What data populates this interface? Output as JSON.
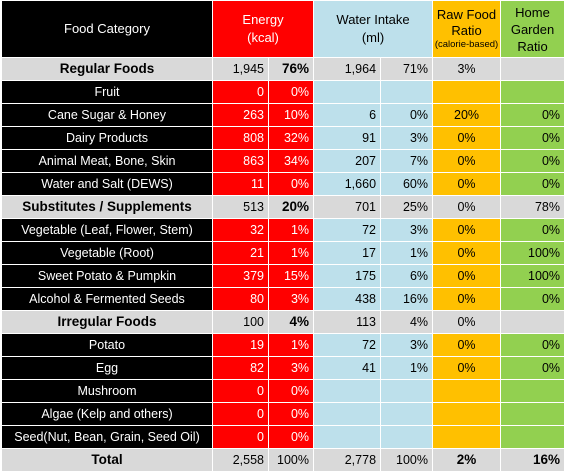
{
  "headers": {
    "category": "Food Category",
    "energy": "Energy",
    "energy_unit": "(kcal)",
    "water": "Water Intake",
    "water_unit": "(ml)",
    "raw_line1": "Raw Food",
    "raw_line2": "Ratio",
    "raw_note": "(calorie-based)",
    "home_line1": "Home",
    "home_line2": "Garden",
    "home_line3": "Ratio"
  },
  "rows": [
    {
      "kind": "group",
      "category": "Regular Foods",
      "energy": "1,945",
      "energy_pct": "76%",
      "water": "1,964",
      "water_pct": "71%",
      "raw": "3%",
      "home": ""
    },
    {
      "kind": "item",
      "category": "Fruit",
      "energy": "0",
      "energy_pct": "0%",
      "water": "",
      "water_pct": "",
      "raw": "",
      "home": ""
    },
    {
      "kind": "item",
      "category": "Cane Sugar & Honey",
      "energy": "263",
      "energy_pct": "10%",
      "water": "6",
      "water_pct": "0%",
      "raw": "20%",
      "home": "0%"
    },
    {
      "kind": "item",
      "category": "Dairy Products",
      "energy": "808",
      "energy_pct": "32%",
      "water": "91",
      "water_pct": "3%",
      "raw": "0%",
      "home": "0%"
    },
    {
      "kind": "item",
      "category": "Animal Meat, Bone, Skin",
      "energy": "863",
      "energy_pct": "34%",
      "water": "207",
      "water_pct": "7%",
      "raw": "0%",
      "home": "0%"
    },
    {
      "kind": "item",
      "category": "Water and Salt (DEWS)",
      "energy": "11",
      "energy_pct": "0%",
      "water": "1,660",
      "water_pct": "60%",
      "raw": "0%",
      "home": "0%"
    },
    {
      "kind": "group",
      "category": "Substitutes / Supplements",
      "energy": "513",
      "energy_pct": "20%",
      "water": "701",
      "water_pct": "25%",
      "raw": "0%",
      "home": "78%"
    },
    {
      "kind": "item",
      "category": "Vegetable (Leaf, Flower, Stem)",
      "energy": "32",
      "energy_pct": "1%",
      "water": "72",
      "water_pct": "3%",
      "raw": "0%",
      "home": "0%"
    },
    {
      "kind": "item",
      "category": "Vegetable (Root)",
      "energy": "21",
      "energy_pct": "1%",
      "water": "17",
      "water_pct": "1%",
      "raw": "0%",
      "home": "100%"
    },
    {
      "kind": "item",
      "category": "Sweet Potato & Pumpkin",
      "energy": "379",
      "energy_pct": "15%",
      "water": "175",
      "water_pct": "6%",
      "raw": "0%",
      "home": "100%"
    },
    {
      "kind": "item",
      "category": "Alcohol & Fermented Seeds",
      "energy": "80",
      "energy_pct": "3%",
      "water": "438",
      "water_pct": "16%",
      "raw": "0%",
      "home": "0%"
    },
    {
      "kind": "group",
      "category": "Irregular Foods",
      "energy": "100",
      "energy_pct": "4%",
      "water": "113",
      "water_pct": "4%",
      "raw": "0%",
      "home": ""
    },
    {
      "kind": "item",
      "category": "Potato",
      "energy": "19",
      "energy_pct": "1%",
      "water": "72",
      "water_pct": "3%",
      "raw": "0%",
      "home": "0%"
    },
    {
      "kind": "item",
      "category": "Egg",
      "energy": "82",
      "energy_pct": "3%",
      "water": "41",
      "water_pct": "1%",
      "raw": "0%",
      "home": "0%"
    },
    {
      "kind": "item",
      "category": "Mushroom",
      "energy": "0",
      "energy_pct": "0%",
      "water": "",
      "water_pct": "",
      "raw": "",
      "home": ""
    },
    {
      "kind": "item",
      "category": "Algae (Kelp and others)",
      "energy": "0",
      "energy_pct": "0%",
      "water": "",
      "water_pct": "",
      "raw": "",
      "home": ""
    },
    {
      "kind": "item",
      "category": "Seed(Nut, Bean, Grain, Seed Oil)",
      "energy": "0",
      "energy_pct": "0%",
      "water": "",
      "water_pct": "",
      "raw": "",
      "home": ""
    },
    {
      "kind": "total",
      "category": "Total",
      "energy": "2,558",
      "energy_pct": "100%",
      "water": "2,778",
      "water_pct": "100%",
      "raw": "2%",
      "home": "16%"
    }
  ],
  "colors": {
    "energy": "#ff0000",
    "water": "#bde0eb",
    "raw": "#ffc000",
    "home": "#92d050",
    "category": "#000000",
    "group": "#d9d9d9"
  }
}
